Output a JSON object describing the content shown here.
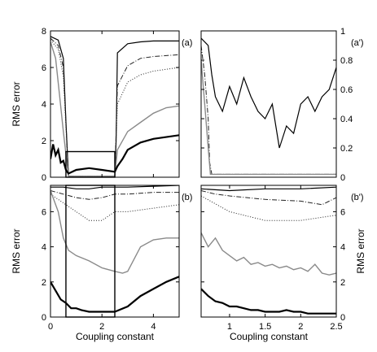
{
  "chart_data": [
    {
      "panel": "(a)",
      "type": "line",
      "ylabel": "RMS error",
      "xlabel": "",
      "xlim": [
        0,
        5
      ],
      "ylim": [
        0,
        8
      ],
      "xticks": [
        "0",
        "2",
        "4"
      ],
      "yticks": [
        "0",
        "2",
        "4",
        "6",
        "8"
      ],
      "inset_box": {
        "x": [
          0.6,
          2.5
        ],
        "y": [
          0,
          1.4
        ]
      },
      "series": [
        {
          "style": "solid-thin-black",
          "x": [
            0,
            0.3,
            0.5,
            0.6,
            0.7,
            2.5,
            2.55,
            2.6,
            3,
            3.5,
            4,
            5
          ],
          "y": [
            7.7,
            7.5,
            6.5,
            3,
            0.05,
            0.05,
            2,
            6.8,
            7.3,
            7.4,
            7.45,
            7.45
          ]
        },
        {
          "style": "dashdot",
          "x": [
            0,
            0.3,
            0.5,
            0.7,
            2.5,
            2.6,
            3,
            3.5,
            4,
            5
          ],
          "y": [
            7.6,
            7.2,
            6,
            0.05,
            0.05,
            5,
            6.1,
            6.5,
            6.6,
            6.7
          ]
        },
        {
          "style": "dotted",
          "x": [
            0,
            0.3,
            0.5,
            0.7,
            2.5,
            2.6,
            3,
            3.5,
            4,
            5
          ],
          "y": [
            7.5,
            7,
            5.5,
            0.05,
            0.05,
            4,
            5.2,
            5.6,
            5.8,
            6.0
          ]
        },
        {
          "style": "gray",
          "x": [
            0,
            0.2,
            0.35,
            0.5,
            0.7,
            2.5,
            2.6,
            3,
            3.5,
            4,
            4.5,
            5
          ],
          "y": [
            7.4,
            6.5,
            4.5,
            2.5,
            0.05,
            0.05,
            1.5,
            2.5,
            3.0,
            3.5,
            3.8,
            3.9
          ]
        },
        {
          "style": "solid-thick-black",
          "x": [
            0,
            0.1,
            0.2,
            0.3,
            0.4,
            0.5,
            0.6,
            0.7,
            1.0,
            1.5,
            2.0,
            2.5,
            2.6,
            2.8,
            3,
            3.5,
            4,
            5
          ],
          "y": [
            1.0,
            1.8,
            1.2,
            1.5,
            0.8,
            0.9,
            0.4,
            0.2,
            0.4,
            0.5,
            0.4,
            0.3,
            0.6,
            1.0,
            1.5,
            1.9,
            2.1,
            2.3
          ]
        }
      ]
    },
    {
      "panel": "(a')",
      "type": "line",
      "ylabel": "",
      "xlabel": "",
      "xlim": [
        0.6,
        2.5
      ],
      "ylim": [
        0,
        1
      ],
      "yticks": [
        "0",
        "0.2",
        "0.4",
        "0.6",
        "0.8",
        "1"
      ],
      "series": [
        {
          "style": "solid-thin-black",
          "x": [
            0.6,
            0.7,
            0.75,
            0.8,
            0.9,
            1.0,
            1.1,
            1.2,
            1.3,
            1.4,
            1.5,
            1.6,
            1.7,
            1.8,
            1.9,
            2.0,
            2.1,
            2.2,
            2.3,
            2.4,
            2.5
          ],
          "y": [
            0.95,
            0.9,
            0.7,
            0.55,
            0.45,
            0.62,
            0.5,
            0.68,
            0.55,
            0.45,
            0.4,
            0.5,
            0.2,
            0.35,
            0.3,
            0.5,
            0.55,
            0.45,
            0.55,
            0.6,
            0.75
          ]
        },
        {
          "style": "dashdot",
          "x": [
            0.6,
            0.65,
            0.7,
            0.72,
            0.75,
            2.5
          ],
          "y": [
            0.9,
            0.7,
            0.4,
            0.1,
            0.02,
            0.02
          ]
        },
        {
          "style": "gray",
          "x": [
            0.6,
            0.65,
            0.7,
            0.73,
            2.5
          ],
          "y": [
            0.8,
            0.5,
            0.2,
            0.02,
            0.02
          ]
        }
      ]
    },
    {
      "panel": "(b)",
      "type": "line",
      "ylabel": "RMS error",
      "xlabel": "Coupling constant",
      "xlim": [
        0,
        5
      ],
      "ylim": [
        0,
        7.5
      ],
      "xticks": [
        "0",
        "2",
        "4"
      ],
      "yticks": [
        "0",
        "2",
        "4",
        "6"
      ],
      "inset_box": {
        "x": [
          0.6,
          2.5
        ],
        "y": [
          0,
          7.5
        ]
      },
      "series": [
        {
          "style": "solid-thin-black",
          "x": [
            0,
            0.5,
            1.0,
            1.5,
            2.0,
            2.5,
            3,
            4,
            5
          ],
          "y": [
            7.4,
            7.4,
            7.3,
            7.3,
            7.4,
            7.4,
            7.4,
            7.45,
            7.5
          ]
        },
        {
          "style": "dashdot",
          "x": [
            0,
            0.5,
            1.0,
            1.5,
            2.0,
            2.5,
            3,
            4,
            5
          ],
          "y": [
            7.2,
            7.0,
            6.8,
            6.7,
            6.8,
            7.0,
            7.0,
            7.1,
            7.1
          ]
        },
        {
          "style": "dotted",
          "x": [
            0,
            0.5,
            1.0,
            1.5,
            2.0,
            2.5,
            3,
            4,
            5
          ],
          "y": [
            7.0,
            6.5,
            6.0,
            5.5,
            5.5,
            6.0,
            6.0,
            6.2,
            6.4
          ]
        },
        {
          "style": "gray",
          "x": [
            0,
            0.3,
            0.5,
            0.7,
            1.0,
            1.5,
            2.0,
            2.5,
            2.8,
            3.0,
            3.5,
            4.0,
            4.5,
            5
          ],
          "y": [
            7.2,
            6.0,
            4.5,
            3.8,
            3.5,
            3.2,
            2.8,
            2.6,
            2.5,
            2.6,
            4.0,
            4.4,
            4.5,
            4.5
          ]
        },
        {
          "style": "solid-thick-black",
          "x": [
            0,
            0.2,
            0.4,
            0.6,
            0.8,
            1.0,
            1.2,
            1.5,
            2.0,
            2.5,
            3.0,
            3.5,
            4.0,
            4.5,
            5
          ],
          "y": [
            2.0,
            1.5,
            1.0,
            0.8,
            0.5,
            0.5,
            0.4,
            0.3,
            0.3,
            0.3,
            0.6,
            1.2,
            1.6,
            2.0,
            2.3
          ]
        }
      ]
    },
    {
      "panel": "(b')",
      "type": "line",
      "ylabel": "RMS error",
      "xlabel": "Coupling constant",
      "xlim": [
        0.6,
        2.5
      ],
      "ylim": [
        0,
        7.5
      ],
      "xticks": [
        "1",
        "1.5",
        "2",
        "2.5"
      ],
      "yticks": [
        "0",
        "2",
        "4",
        "6"
      ],
      "series": [
        {
          "style": "solid-thin-black",
          "x": [
            0.6,
            1.0,
            1.5,
            2.0,
            2.5
          ],
          "y": [
            7.3,
            7.2,
            7.3,
            7.3,
            7.4
          ]
        },
        {
          "style": "dashdot",
          "x": [
            0.6,
            0.8,
            1.0,
            1.5,
            2.0,
            2.3,
            2.5
          ],
          "y": [
            7.2,
            7.0,
            6.9,
            6.7,
            6.6,
            6.4,
            6.8
          ]
        },
        {
          "style": "dotted",
          "x": [
            0.6,
            1.0,
            1.5,
            2.0,
            2.5
          ],
          "y": [
            6.9,
            6.0,
            5.5,
            5.5,
            5.8
          ]
        },
        {
          "style": "gray",
          "x": [
            0.6,
            0.7,
            0.8,
            0.9,
            1.0,
            1.1,
            1.2,
            1.3,
            1.4,
            1.5,
            1.6,
            1.7,
            1.8,
            1.9,
            2.0,
            2.1,
            2.2,
            2.3,
            2.4,
            2.5
          ],
          "y": [
            4.8,
            4.0,
            4.5,
            3.8,
            3.5,
            3.2,
            3.4,
            3.0,
            3.1,
            2.9,
            3.0,
            2.8,
            2.9,
            2.7,
            2.8,
            2.6,
            3.0,
            2.5,
            2.4,
            2.5
          ]
        },
        {
          "style": "solid-thick-black",
          "x": [
            0.6,
            0.7,
            0.8,
            0.9,
            1.0,
            1.1,
            1.2,
            1.3,
            1.4,
            1.5,
            1.6,
            1.7,
            1.8,
            1.9,
            2.0,
            2.1,
            2.2,
            2.3,
            2.4,
            2.5
          ],
          "y": [
            1.6,
            1.2,
            0.9,
            0.8,
            0.6,
            0.6,
            0.5,
            0.4,
            0.4,
            0.3,
            0.3,
            0.3,
            0.4,
            0.3,
            0.3,
            0.2,
            0.2,
            0.2,
            0.2,
            0.2
          ]
        }
      ]
    }
  ]
}
